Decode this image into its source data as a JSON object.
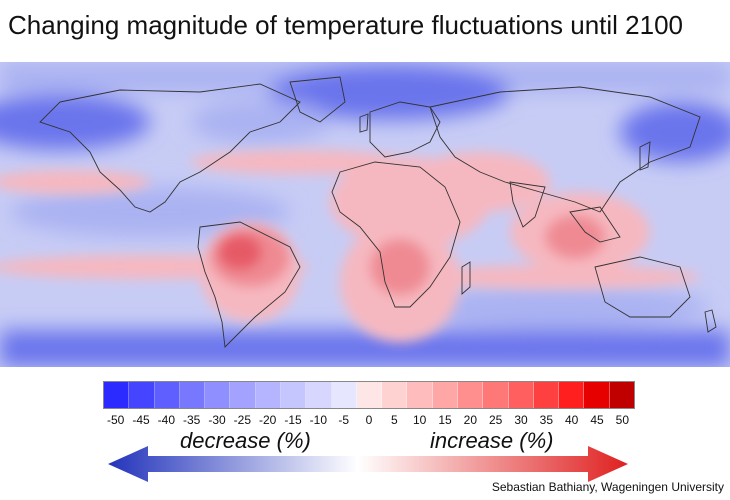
{
  "title": "Changing magnitude of temperature fluctuations until 2100",
  "legend": {
    "ticks": [
      "-50",
      "-45",
      "-40",
      "-35",
      "-30",
      "-25",
      "-20",
      "-15",
      "-10",
      "-5",
      "0",
      "5",
      "10",
      "15",
      "20",
      "25",
      "30",
      "35",
      "40",
      "45",
      "50"
    ],
    "colors": [
      "#2b2bff",
      "#4545ff",
      "#5f5fff",
      "#7878ff",
      "#8f8fff",
      "#a3a3ff",
      "#b5b5ff",
      "#c6c6ff",
      "#d6d6ff",
      "#e6e6ff",
      "#ffe6e6",
      "#ffd2d2",
      "#ffbcbc",
      "#ffa6a6",
      "#ff8f8f",
      "#ff7878",
      "#ff5f5f",
      "#ff4040",
      "#ff1f1f",
      "#e60000",
      "#c00000"
    ],
    "decrease_label": "decrease (%)",
    "increase_label": "increase (%)",
    "decrease_color": "#2233bb",
    "increase_color": "#e02020"
  },
  "map_colors": {
    "ocean_base": "#c7ccf5",
    "strong_decrease": "#6b75ec",
    "decrease": "#aab2f2",
    "increase": "#f6b8c0",
    "strong_increase": "#ef8a93",
    "hotspot": "#e65a66",
    "border": "#333333"
  },
  "credit": "Sebastian Bathiany, Wageningen University"
}
